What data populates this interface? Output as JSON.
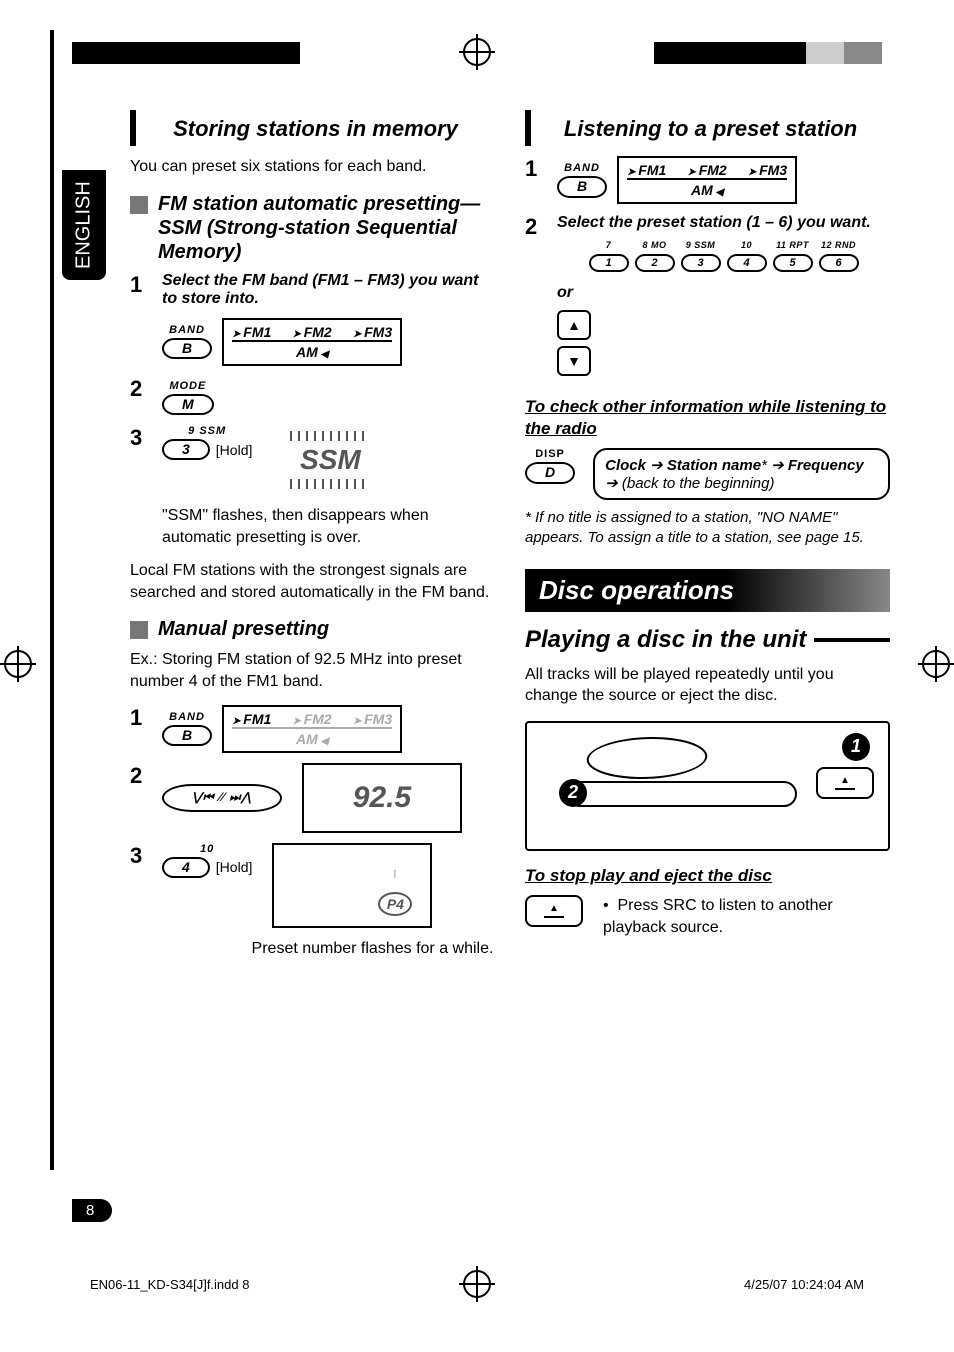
{
  "side_label": "ENGLISH",
  "page_number": "8",
  "footer_left": "EN06-11_KD-S34[J]f.indd   8",
  "footer_right": "4/25/07   10:24:04 AM",
  "top_squares_left": [
    "#000000",
    "#000000",
    "#000000",
    "#000000",
    "#000000",
    "#000000"
  ],
  "top_squares_right": [
    "#000000",
    "#000000",
    "#000000",
    "#000000",
    "#cccccc",
    "#888888"
  ],
  "left": {
    "heading": "Storing stations in memory",
    "intro": "You can preset six stations for each band.",
    "ssm_heading": "FM station automatic presetting—SSM (Strong-station Sequential Memory)",
    "step1": "Select the FM band (FM1 – FM3) you want to store into.",
    "band_button_label": "BAND",
    "band_button_letter": "B",
    "band_cycle_top": [
      "FM1",
      "FM2",
      "FM3"
    ],
    "band_cycle_bottom": "AM",
    "mode_label": "MODE",
    "mode_letter": "M",
    "ssm_btn_top": "9  SSM",
    "ssm_btn_num": "3",
    "ssm_hold": "[Hold]",
    "ssm_logo": "SSM",
    "ssm_caption": "\"SSM\" flashes, then disappears when automatic presetting is over.",
    "ssm_para": "Local FM stations with the strongest signals are searched and stored automatically in the FM band.",
    "manual_heading": "Manual presetting",
    "manual_ex": "Ex.:  Storing FM station of 92.5 MHz into preset number 4 of the FM1 band.",
    "manual_band_cycle_top": [
      "FM1",
      "FM2",
      "FM3"
    ],
    "manual_band_cycle_bottom": "AM",
    "manual_band_active": "FM1",
    "skip_symbols": "∨ ⏮ ⨉ ⏭ ∧",
    "lcd_value": "92.5",
    "preset4_top": "10",
    "preset4_num": "4",
    "preset4_hold": "[Hold]",
    "p4_label": "P4",
    "preset_caption": "Preset number flashes for a while."
  },
  "right": {
    "heading": "Listening to a preset station",
    "band_button_label": "BAND",
    "band_button_letter": "B",
    "band_cycle_top": [
      "FM1",
      "FM2",
      "FM3"
    ],
    "band_cycle_bottom": "AM",
    "step2": "Select the preset station (1 – 6) you want.",
    "preset_top_labels": [
      "7",
      "8  MO",
      "9  SSM",
      "10",
      "11  RPT",
      "12  RND"
    ],
    "preset_nums": [
      "1",
      "2",
      "3",
      "4",
      "5",
      "6"
    ],
    "or": "or",
    "check_heading": "To check other information while listening to the radio",
    "disp_label": "DISP",
    "disp_letter": "D",
    "info_cycle": "Clock ➔ Station name* ➔ Frequency ➔ (back to the beginning)",
    "info_cycle_parts": {
      "a": "Clock",
      "b": "Station name",
      "star": "*",
      "c": "Frequency",
      "d": "(back to the beginning)"
    },
    "footnote": "*  If no title is assigned to a station, \"NO NAME\" appears. To assign a title to a station, see page 15.",
    "disc_banner": "Disc operations",
    "play_heading": "Playing a disc in the unit",
    "play_para": "All tracks will be played repeatedly until you change the source or eject the disc.",
    "badge1": "1",
    "badge2": "2",
    "stop_heading": "To stop play and eject the disc",
    "stop_bullet": "Press SRC to listen to another playback source."
  }
}
